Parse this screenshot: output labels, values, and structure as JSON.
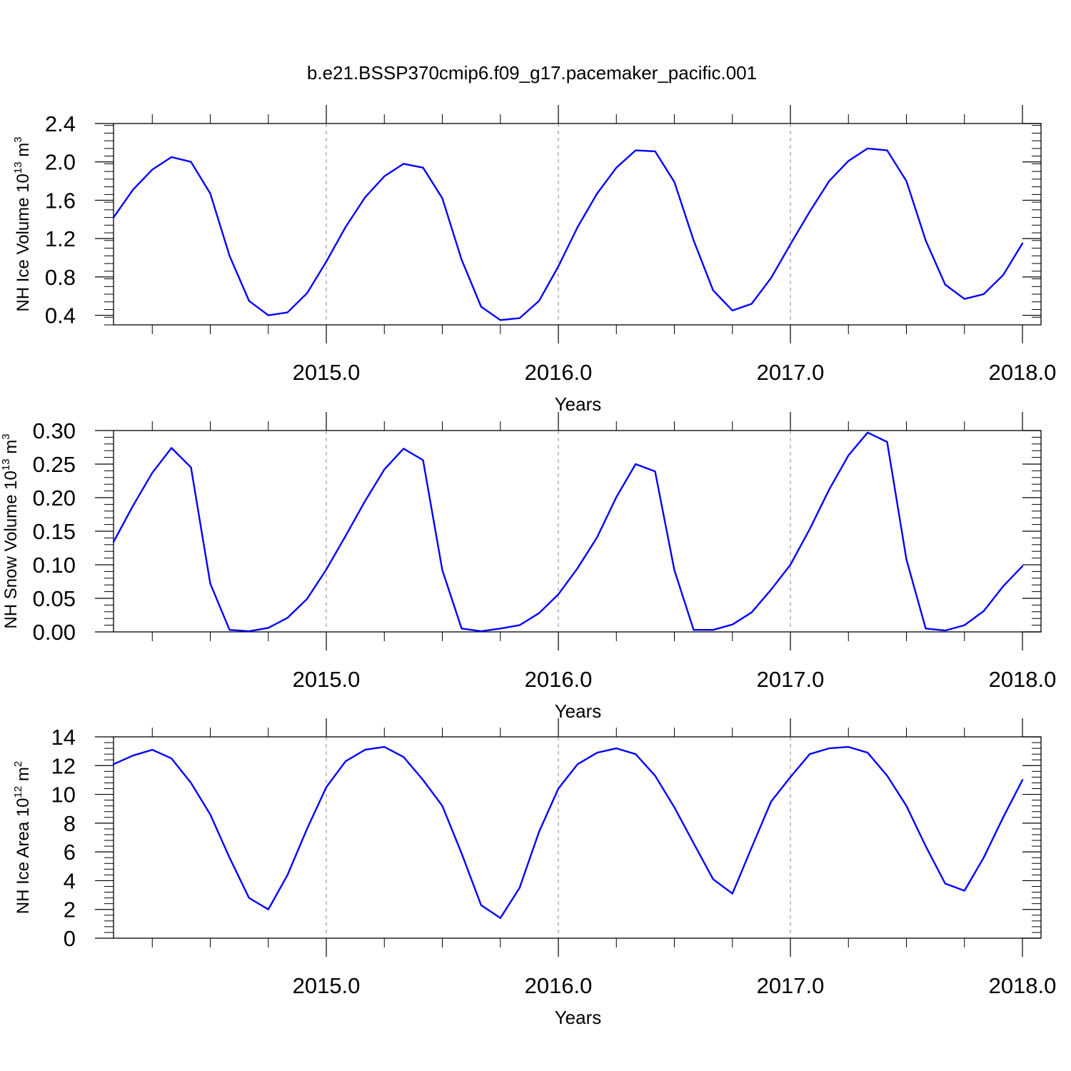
{
  "figure": {
    "title": "b.e21.BSSP370cmip6.f09_g17.pacemaker_pacific.001"
  },
  "colors": {
    "line": "#0000ff",
    "axis": "#000000",
    "grid": "#888888"
  },
  "chart_data": [
    {
      "type": "line",
      "id": "ice-volume",
      "ylabel": "NH Ice Volume 10",
      "ylabel_sup": "13",
      "ylabel_unit": " m",
      "ylabel_unit_sup": "3",
      "xlabel": "Years",
      "xlim": [
        2014.083,
        2018.0
      ],
      "ylim": [
        0.3,
        2.4
      ],
      "x_ticks": [
        "2015.0",
        "2016.0",
        "2017.0",
        "2018.0"
      ],
      "y_ticks": [
        "0.4",
        "0.8",
        "1.2",
        "1.6",
        "2.0",
        "2.4"
      ],
      "grid": "vertical-dashed",
      "series": [
        {
          "x": [
            2014.083,
            2014.167,
            2014.25,
            2014.333,
            2014.417,
            2014.5,
            2014.583,
            2014.667,
            2014.75,
            2014.833,
            2014.917,
            2015.0,
            2015.083,
            2015.167,
            2015.25,
            2015.333,
            2015.417,
            2015.5,
            2015.583,
            2015.667,
            2015.75,
            2015.833,
            2015.917,
            2016.0,
            2016.083,
            2016.167,
            2016.25,
            2016.333,
            2016.417,
            2016.5,
            2016.583,
            2016.667,
            2016.75,
            2016.833,
            2016.917,
            2017.0,
            2017.083,
            2017.167,
            2017.25,
            2017.333,
            2017.417,
            2017.5,
            2017.583,
            2017.667,
            2017.75,
            2017.833,
            2017.917,
            2018.0
          ],
          "values": [
            1.42,
            1.71,
            1.92,
            2.05,
            2.0,
            1.67,
            1.02,
            0.55,
            0.4,
            0.43,
            0.63,
            0.96,
            1.32,
            1.63,
            1.85,
            1.98,
            1.94,
            1.62,
            0.98,
            0.49,
            0.35,
            0.37,
            0.55,
            0.91,
            1.32,
            1.67,
            1.94,
            2.12,
            2.11,
            1.79,
            1.18,
            0.66,
            0.45,
            0.52,
            0.79,
            1.14,
            1.48,
            1.8,
            2.01,
            2.14,
            2.12,
            1.8,
            1.18,
            0.72,
            0.57,
            0.62,
            0.82,
            1.15
          ]
        }
      ]
    },
    {
      "type": "line",
      "id": "snow-volume",
      "ylabel": "NH Snow Volume 10",
      "ylabel_sup": "13",
      "ylabel_unit": " m",
      "ylabel_unit_sup": "3",
      "xlabel": "Years",
      "xlim": [
        2014.083,
        2018.0
      ],
      "ylim": [
        0.0,
        0.3
      ],
      "x_ticks": [
        "2015.0",
        "2016.0",
        "2017.0",
        "2018.0"
      ],
      "y_ticks": [
        "0.00",
        "0.05",
        "0.10",
        "0.15",
        "0.20",
        "0.25",
        "0.30"
      ],
      "grid": "vertical-dashed",
      "series": [
        {
          "x": [
            2014.083,
            2014.167,
            2014.25,
            2014.333,
            2014.417,
            2014.5,
            2014.583,
            2014.667,
            2014.75,
            2014.833,
            2014.917,
            2015.0,
            2015.083,
            2015.167,
            2015.25,
            2015.333,
            2015.417,
            2015.5,
            2015.583,
            2015.667,
            2015.75,
            2015.833,
            2015.917,
            2016.0,
            2016.083,
            2016.167,
            2016.25,
            2016.333,
            2016.417,
            2016.5,
            2016.583,
            2016.667,
            2016.75,
            2016.833,
            2016.917,
            2017.0,
            2017.083,
            2017.167,
            2017.25,
            2017.333,
            2017.417,
            2017.5,
            2017.583,
            2017.667,
            2017.75,
            2017.833,
            2017.917,
            2018.0
          ],
          "values": [
            0.134,
            0.188,
            0.237,
            0.274,
            0.245,
            0.072,
            0.003,
            0.001,
            0.006,
            0.021,
            0.049,
            0.093,
            0.143,
            0.195,
            0.242,
            0.273,
            0.256,
            0.092,
            0.005,
            0.001,
            0.005,
            0.01,
            0.028,
            0.056,
            0.095,
            0.141,
            0.201,
            0.25,
            0.239,
            0.092,
            0.003,
            0.003,
            0.011,
            0.029,
            0.063,
            0.1,
            0.153,
            0.212,
            0.263,
            0.297,
            0.283,
            0.108,
            0.005,
            0.002,
            0.01,
            0.031,
            0.068,
            0.098
          ]
        }
      ]
    },
    {
      "type": "line",
      "id": "ice-area",
      "ylabel": "NH Ice Area 10",
      "ylabel_sup": "12",
      "ylabel_unit": " m",
      "ylabel_unit_sup": "2",
      "xlabel": "Years",
      "xlim": [
        2014.083,
        2018.0
      ],
      "ylim": [
        0,
        14
      ],
      "x_ticks": [
        "2015.0",
        "2016.0",
        "2017.0",
        "2018.0"
      ],
      "y_ticks": [
        "0",
        "2",
        "4",
        "6",
        "8",
        "10",
        "12",
        "14"
      ],
      "grid": "vertical-dashed",
      "series": [
        {
          "x": [
            2014.083,
            2014.167,
            2014.25,
            2014.333,
            2014.417,
            2014.5,
            2014.583,
            2014.667,
            2014.75,
            2014.833,
            2014.917,
            2015.0,
            2015.083,
            2015.167,
            2015.25,
            2015.333,
            2015.417,
            2015.5,
            2015.583,
            2015.667,
            2015.75,
            2015.833,
            2015.917,
            2016.0,
            2016.083,
            2016.167,
            2016.25,
            2016.333,
            2016.417,
            2016.5,
            2016.583,
            2016.667,
            2016.75,
            2016.833,
            2016.917,
            2017.0,
            2017.083,
            2017.167,
            2017.25,
            2017.333,
            2017.417,
            2017.5,
            2017.583,
            2017.667,
            2017.75,
            2017.833,
            2017.917,
            2018.0
          ],
          "values": [
            12.1,
            12.7,
            13.1,
            12.5,
            10.8,
            8.6,
            5.6,
            2.8,
            2.0,
            4.4,
            7.6,
            10.5,
            12.3,
            13.1,
            13.3,
            12.6,
            11.0,
            9.2,
            5.9,
            2.3,
            1.4,
            3.5,
            7.4,
            10.4,
            12.1,
            12.9,
            13.2,
            12.8,
            11.3,
            9.1,
            6.6,
            4.1,
            3.1,
            6.3,
            9.5,
            11.2,
            12.8,
            13.2,
            13.3,
            12.9,
            11.3,
            9.2,
            6.4,
            3.8,
            3.3,
            5.6,
            8.4,
            11.0
          ]
        }
      ]
    }
  ]
}
